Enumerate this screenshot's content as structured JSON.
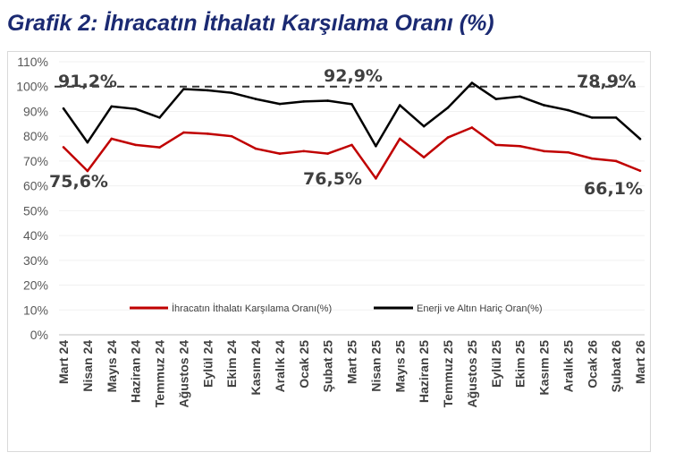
{
  "title": "Grafik 2: İhracatın İthalatı Karşılama Oranı (%)",
  "chart_data": {
    "type": "line",
    "title": "Grafik 2: İhracatın İthalatı Karşılama Oranı (%)",
    "xlabel": "",
    "ylabel": "",
    "ylim": [
      0,
      110
    ],
    "y_ticks": [
      "0%",
      "10%",
      "20%",
      "30%",
      "40%",
      "50%",
      "60%",
      "70%",
      "80%",
      "90%",
      "100%",
      "110%"
    ],
    "grid": true,
    "legend_position": "middle",
    "categories": [
      "Mart 24",
      "Nisan 24",
      "Mayıs 24",
      "Haziran 24",
      "Temmuz 24",
      "Ağustos 24",
      "Eylül 24",
      "Ekim 24",
      "Kasım 24",
      "Aralık 24",
      "Ocak 25",
      "Şubat 25",
      "Mart 25",
      "Nisan 25",
      "Mayıs 25",
      "Haziran 25",
      "Temmuz 25",
      "Ağustos 25",
      "Eylül 25",
      "Ekim 25",
      "Kasım 25",
      "Aralık 25",
      "Ocak 26",
      "Şubat 26",
      "Mart 26"
    ],
    "series": [
      {
        "name": "İhracatın İthalatı Karşılama   Oranı(%)",
        "color": "#c00000",
        "values": [
          75.6,
          66.0,
          79.0,
          76.5,
          75.5,
          81.5,
          81.0,
          80.0,
          75.0,
          73.0,
          74.0,
          73.0,
          76.5,
          63.0,
          79.0,
          71.5,
          79.5,
          83.5,
          76.5,
          76.0,
          74.0,
          73.5,
          71.0,
          70.0,
          66.1
        ]
      },
      {
        "name": "Enerji ve Altın Hariç  Oran(%)",
        "color": "#000000",
        "values": [
          91.2,
          77.5,
          92.0,
          91.0,
          87.5,
          99.0,
          98.5,
          97.5,
          95.0,
          93.0,
          94.0,
          94.3,
          92.9,
          76.0,
          92.5,
          84.0,
          91.5,
          101.5,
          95.0,
          96.0,
          92.5,
          90.5,
          87.5,
          87.5,
          78.9
        ]
      }
    ],
    "reference_line": {
      "value": 100,
      "style": "dashed",
      "color": "#333333"
    },
    "annotations": [
      {
        "text": "91,2%",
        "category": "Mart 24",
        "series": 1
      },
      {
        "text": "75,6%",
        "category": "Mart 24",
        "series": 0
      },
      {
        "text": "92,9%",
        "category": "Mart 25",
        "series": 1
      },
      {
        "text": "76,5%",
        "category": "Mart 25",
        "series": 0
      },
      {
        "text": "78,9%",
        "category": "Mart 26",
        "series": 1
      },
      {
        "text": "66,1%",
        "category": "Mart 26",
        "series": 0
      }
    ]
  }
}
